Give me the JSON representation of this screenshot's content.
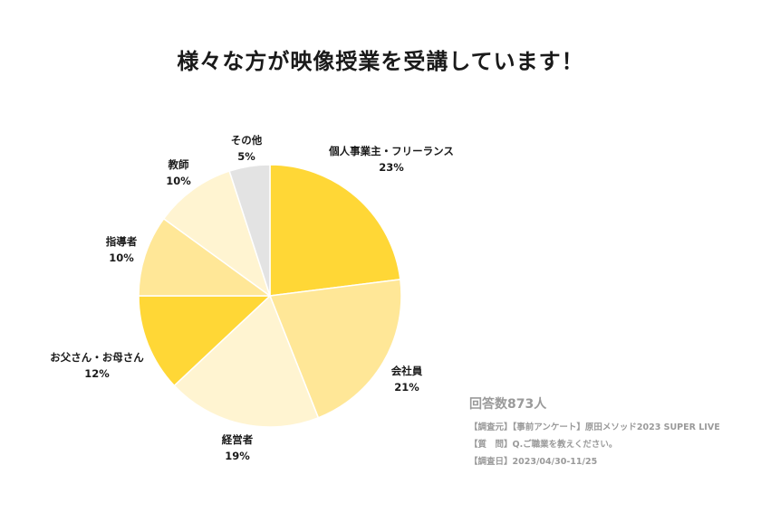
{
  "title": "様々な方が映像授業を受講しています！",
  "colors": {
    "dark_yellow": "#FFD736",
    "mid_yellow": "#FFE797",
    "light_yellow": "#FFF4D1",
    "pale_yellow": "#FFEB9F",
    "gray": "#E3E3E3",
    "outline": "#ffffff"
  },
  "chart_data": {
    "type": "pie",
    "title": "様々な方が映像授業を受講しています！",
    "slices": [
      {
        "label": "個人事業主・フリーランス",
        "value": 23,
        "value_label": "23%",
        "color": "#FFD736"
      },
      {
        "label": "会社員",
        "value": 21,
        "value_label": "21%",
        "color": "#FFE797"
      },
      {
        "label": "経営者",
        "value": 19,
        "value_label": "19%",
        "color": "#FFF4D1"
      },
      {
        "label": "お父さん・お母さん",
        "value": 12,
        "value_label": "12%",
        "color": "#FFD736"
      },
      {
        "label": "指導者",
        "value": 10,
        "value_label": "10%",
        "color": "#FFE797"
      },
      {
        "label": "教師",
        "value": 10,
        "value_label": "10%",
        "color": "#FFF4D1"
      },
      {
        "label": "その他",
        "value": 5,
        "value_label": "5%",
        "color": "#E3E3E3"
      }
    ]
  },
  "notes": {
    "respondents": "回答数873人",
    "survey_source": "【調査元】【事前アンケート】原田メソッド2023 SUPER LIVE",
    "question": "【質　問】Q.ご職業を教えください。",
    "survey_date": "【調査日】2023/04/30-11/25"
  }
}
